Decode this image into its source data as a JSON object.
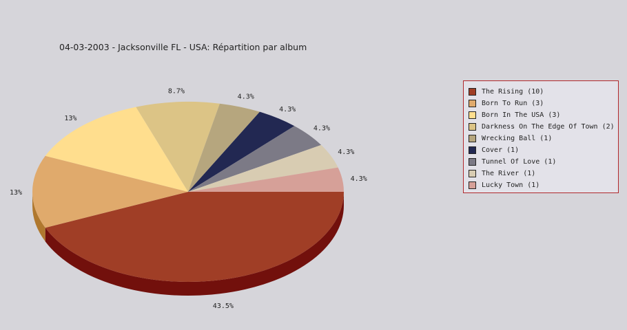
{
  "chart_data": {
    "type": "pie",
    "title": "04-03-2003 - Jacksonville FL - USA:  Répartition par album",
    "slices": [
      {
        "label": "The Rising",
        "legend": "The Rising (10)",
        "value": 10,
        "percent_label": "43.5%",
        "color": "#a03e26",
        "side": "#72100c"
      },
      {
        "label": "Born To Run",
        "legend": "Born To Run (3)",
        "value": 3,
        "percent_label": "13%",
        "color": "#e0aa6c",
        "side": "#b0782e"
      },
      {
        "label": "Born In The USA",
        "legend": "Born In The USA (3)",
        "value": 3,
        "percent_label": "13%",
        "color": "#ffde8e",
        "side": "#c8a852"
      },
      {
        "label": "Darkness On The Edge Of Town",
        "legend": "Darkness On The Edge Of Town (2)",
        "value": 2,
        "percent_label": "8.7%",
        "color": "#dcc486",
        "side": "#a68f52"
      },
      {
        "label": "Wrecking Ball",
        "legend": "Wrecking Ball (1)",
        "value": 1,
        "percent_label": "4.3%",
        "color": "#b6a67e",
        "side": "#86764e"
      },
      {
        "label": "Cover",
        "legend": "Cover (1)",
        "value": 1,
        "percent_label": "4.3%",
        "color": "#222852",
        "side": "#10142e"
      },
      {
        "label": "Tunnel Of Love",
        "legend": "Tunnel Of Love (1)",
        "value": 1,
        "percent_label": "4.3%",
        "color": "#7c7a86",
        "side": "#54525e"
      },
      {
        "label": "The River",
        "legend": "The River (1)",
        "value": 1,
        "percent_label": "4.3%",
        "color": "#d8ccb2",
        "side": "#a89c82"
      },
      {
        "label": "Lucky Town",
        "legend": "Lucky Town (1)",
        "value": 1,
        "percent_label": "4.3%",
        "color": "#d6a098",
        "side": "#a6706a"
      }
    ],
    "legend_placement": "right"
  }
}
